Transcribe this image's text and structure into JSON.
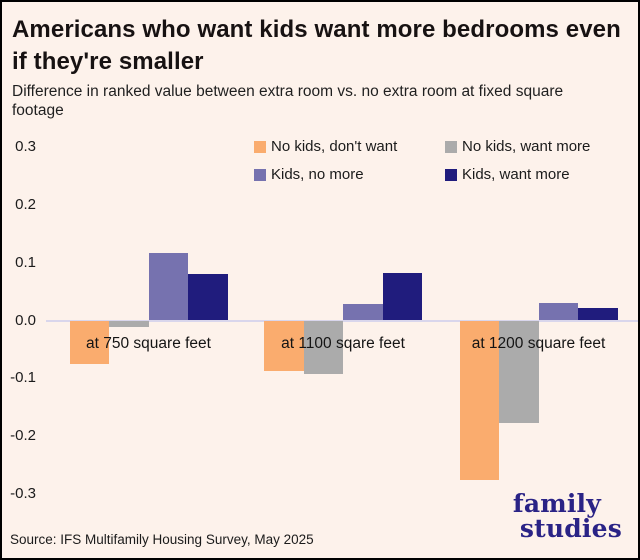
{
  "header": {
    "title": "Americans who want kids want more bedrooms even if they're smaller",
    "subtitle": "Difference in ranked value between extra room vs. no extra room at fixed square footage"
  },
  "legend": {
    "items": [
      {
        "label": "No kids, don't want",
        "color": "#FAAC6E"
      },
      {
        "label": "No kids, want more",
        "color": "#ABABAB"
      },
      {
        "label": "Kids, no more",
        "color": "#7672AF"
      },
      {
        "label": "Kids, want more",
        "color": "#201C7D"
      }
    ]
  },
  "chart_data": {
    "type": "bar",
    "title": "Americans who want kids want more bedrooms even if they're smaller",
    "subtitle": "Difference in ranked value between extra room vs. no extra room at fixed square footage",
    "categories": [
      "at 750 square feet",
      "at 1100 sqare feet",
      "at 1200 square feet"
    ],
    "series": [
      {
        "name": "No kids, don't want",
        "color": "#FAAC6E",
        "values": [
          -0.075,
          -0.087,
          -0.275
        ]
      },
      {
        "name": "No kids, want more",
        "color": "#ABABAB",
        "values": [
          -0.012,
          -0.092,
          -0.178
        ]
      },
      {
        "name": "Kids, no more",
        "color": "#7672AF",
        "values": [
          0.117,
          0.028,
          0.031
        ]
      },
      {
        "name": "Kids, want more",
        "color": "#201C7D",
        "values": [
          0.081,
          0.082,
          0.021
        ]
      }
    ],
    "xlabel": "",
    "ylabel": "",
    "ylim": [
      -0.3,
      0.3
    ],
    "yticks": [
      "0.3",
      "0.2",
      "0.1",
      "0.0",
      "-0.1",
      "-0.2",
      "-0.3"
    ],
    "grid": "zero-line-only",
    "legend_position": "top-right",
    "zero_line_color": "#D9D6EC",
    "background_color": "#FDF2EB"
  },
  "footer": {
    "source": "Source: IFS Multifamily Housing Survey, May 2025",
    "logo_line1": "family",
    "logo_line2": "studies"
  }
}
